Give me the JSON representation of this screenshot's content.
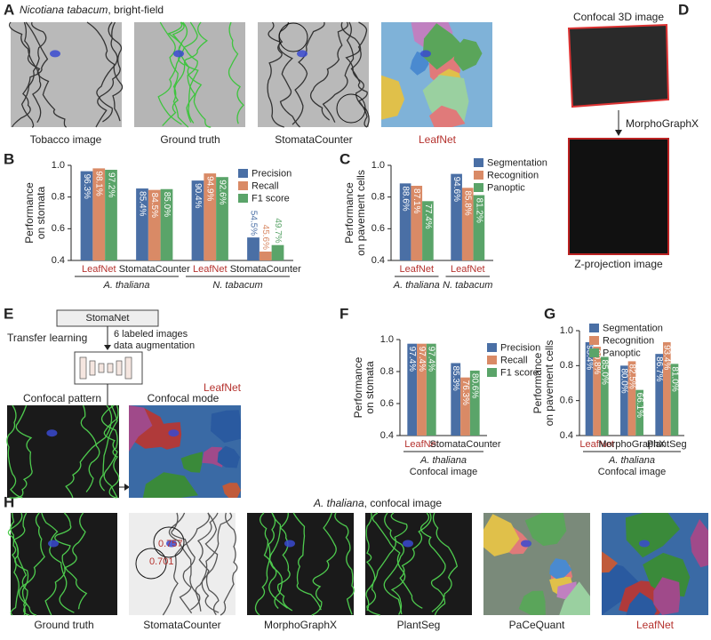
{
  "panel_labels": [
    "A",
    "B",
    "C",
    "D",
    "E",
    "F",
    "G",
    "H"
  ],
  "panel_a": {
    "title_species": "Nicotiana tabacum",
    "title_rest": ", bright-field",
    "captions": [
      "Tobacco image",
      "Ground truth",
      "StomataCounter",
      "LeafNet"
    ]
  },
  "panel_d": {
    "top": "Confocal 3D image",
    "arrow": "MorphoGraphX",
    "bottom": "Z-projection image"
  },
  "panel_e": {
    "box": "StomaNet",
    "transfer": "Transfer learning",
    "note": [
      "6 labeled images",
      "data augmentation"
    ],
    "model": "LeafNet",
    "left": "Confocal pattern",
    "right": "Confocal mode"
  },
  "panel_h": {
    "title_species": "A. thaliana",
    "title_rest": ", confocal image",
    "captions": [
      "Ground truth",
      "StomataCounter",
      "MorphoGraphX",
      "PlantSeg",
      "PaCeQuant",
      "LeafNet"
    ],
    "scores": [
      "0.757",
      "0.701"
    ]
  },
  "chart_data": [
    {
      "type": "bar",
      "ylabel": [
        "Performance",
        "on stomata"
      ],
      "ylim": [
        0.4,
        1
      ],
      "yticks": [
        0.4,
        0.6,
        0.8,
        {
          "value": 1,
          "label": "1.0"
        }
      ],
      "groups": [
        {
          "name": "A. thaliana",
          "categories": [
            "LeafNet",
            "StomataCounter"
          ]
        },
        {
          "name": "N. tabacum",
          "categories": [
            "LeafNet",
            "StomataCounter"
          ]
        }
      ],
      "category_colors": [
        "#b5322e",
        "#222222",
        "#b5322e",
        "#222222"
      ],
      "legend": "upper right",
      "series": [
        {
          "name": "Precision",
          "color": "#4a6fa5",
          "values": [
            0.963,
            0.854,
            0.904,
            0.545
          ],
          "value_labels": [
            "96.3%",
            "85.4%",
            "90.4%",
            "54.5%"
          ]
        },
        {
          "name": "Recall",
          "color": "#d98a66",
          "values": [
            0.981,
            0.845,
            0.949,
            0.456
          ],
          "value_labels": [
            "98.1%",
            "84.5%",
            "94.9%",
            "45.6%"
          ]
        },
        {
          "name": "F1 score",
          "color": "#5aa469",
          "values": [
            0.972,
            0.85,
            0.926,
            0.497
          ],
          "value_labels": [
            "97.2%",
            "85.0%",
            "92.6%",
            "49.7%"
          ]
        }
      ]
    },
    {
      "type": "bar",
      "ylabel": [
        "Performance",
        "on pavement cells"
      ],
      "ylim": [
        0.4,
        1
      ],
      "yticks": [
        0.4,
        0.6,
        0.8,
        {
          "value": 1,
          "label": "1.0"
        }
      ],
      "groups": [
        {
          "name": "A. thaliana",
          "categories": [
            "LeafNet"
          ]
        },
        {
          "name": "N. tabacum",
          "categories": [
            "LeafNet"
          ]
        }
      ],
      "category_colors": [
        "#b5322e",
        "#b5322e"
      ],
      "legend": "upper right",
      "series": [
        {
          "name": "Segmentation",
          "color": "#4a6fa5",
          "values": [
            0.886,
            0.946
          ],
          "value_labels": [
            "88.6%",
            "94.6%"
          ]
        },
        {
          "name": "Recognition",
          "color": "#d98a66",
          "values": [
            0.871,
            0.858
          ],
          "value_labels": [
            "87.1%",
            "85.8%"
          ]
        },
        {
          "name": "Panoptic",
          "color": "#5aa469",
          "values": [
            0.774,
            0.812
          ],
          "value_labels": [
            "77.4%",
            "81.2%"
          ]
        }
      ]
    },
    {
      "type": "bar",
      "ylabel": [
        "Performance",
        "on stomata"
      ],
      "xlabel": "Confocal image",
      "ylim": [
        0.4,
        1
      ],
      "yticks": [
        0.4,
        0.6,
        0.8,
        {
          "value": 1,
          "label": "1.0"
        }
      ],
      "groups": [
        {
          "name": "A. thaliana",
          "categories": [
            "LeafNet",
            "StomataCounter"
          ]
        }
      ],
      "category_colors": [
        "#b5322e",
        "#222222"
      ],
      "legend": "right",
      "series": [
        {
          "name": "Precision",
          "color": "#4a6fa5",
          "values": [
            0.974,
            0.853
          ],
          "value_labels": [
            "97.4%",
            "85.3%"
          ]
        },
        {
          "name": "Recall",
          "color": "#d98a66",
          "values": [
            0.974,
            0.763
          ],
          "value_labels": [
            "97.4%",
            "76.3%"
          ]
        },
        {
          "name": "F1 score",
          "color": "#5aa469",
          "values": [
            0.974,
            0.806
          ],
          "value_labels": [
            "97.4%",
            "80.6%"
          ]
        }
      ]
    },
    {
      "type": "bar",
      "ylabel": [
        "Performance",
        "on pavement cells"
      ],
      "xlabel": "Confocal image",
      "ylim": [
        0.4,
        1
      ],
      "yticks": [
        0.4,
        0.6,
        0.8,
        {
          "value": 1,
          "label": "1.0"
        }
      ],
      "groups": [
        {
          "name": "A. thaliana",
          "categories": [
            "LeafNet",
            "MorphoGraphX",
            "PlantSeg"
          ]
        }
      ],
      "category_colors": [
        "#b5322e",
        "#222222",
        "#222222"
      ],
      "legend": "upper center",
      "series": [
        {
          "name": "Segmentation",
          "color": "#4a6fa5",
          "values": [
            0.934,
            0.8,
            0.867
          ],
          "value_labels": [
            "93.4%",
            "80.0%",
            "86.7%"
          ]
        },
        {
          "name": "Recognition",
          "color": "#d98a66",
          "values": [
            0.908,
            0.825,
            0.934
          ],
          "value_labels": [
            "90.8%",
            "82.5%",
            "93.4%"
          ]
        },
        {
          "name": "Panoptic",
          "color": "#5aa469",
          "values": [
            0.85,
            0.661,
            0.81
          ],
          "value_labels": [
            "85.0%",
            "66.1%",
            "81.0%"
          ]
        }
      ]
    }
  ]
}
